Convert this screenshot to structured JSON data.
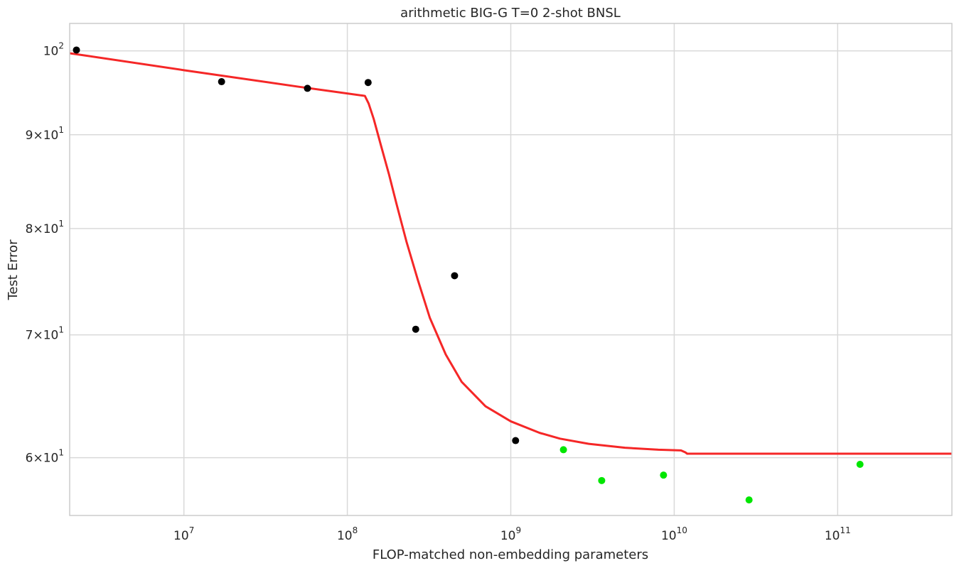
{
  "chart_data": {
    "type": "scatter",
    "title": "arithmetic BIG-G T=0 2-shot BNSL",
    "xlabel": "FLOP-matched non-embedding parameters",
    "ylabel": "Test Error",
    "xscale": "log",
    "yscale": "log",
    "xlim": [
      2000000,
      500000000000
    ],
    "ylim": [
      55.8,
      103.5
    ],
    "grid": true,
    "x_ticks": [
      {
        "value": 10000000,
        "base": "10",
        "exp": "7"
      },
      {
        "value": 100000000,
        "base": "10",
        "exp": "8"
      },
      {
        "value": 1000000000,
        "base": "10",
        "exp": "9"
      },
      {
        "value": 10000000000,
        "base": "10",
        "exp": "10"
      },
      {
        "value": 100000000000,
        "base": "10",
        "exp": "11"
      }
    ],
    "y_ticks": [
      {
        "value": 60,
        "base": "6×10",
        "exp": "1"
      },
      {
        "value": 70,
        "base": "7×10",
        "exp": "1"
      },
      {
        "value": 80,
        "base": "8×10",
        "exp": "1"
      },
      {
        "value": 90,
        "base": "9×10",
        "exp": "1"
      },
      {
        "value": 100,
        "base": "10",
        "exp": "2"
      }
    ],
    "series": [
      {
        "kind": "scatter",
        "color": "#000000",
        "points": [
          {
            "x": 2200000,
            "y": 100.1
          },
          {
            "x": 17000000,
            "y": 96.2
          },
          {
            "x": 57000000,
            "y": 95.4
          },
          {
            "x": 134000000,
            "y": 96.1
          },
          {
            "x": 262000000,
            "y": 70.5
          },
          {
            "x": 453000000,
            "y": 75.4
          },
          {
            "x": 1070000000,
            "y": 61.3
          }
        ]
      },
      {
        "kind": "scatter",
        "color": "#00e600",
        "points": [
          {
            "x": 2100000000,
            "y": 60.6
          },
          {
            "x": 3600000000,
            "y": 58.3
          },
          {
            "x": 8600000000,
            "y": 58.7
          },
          {
            "x": 28700000000,
            "y": 56.9
          },
          {
            "x": 137000000000,
            "y": 59.5
          }
        ]
      },
      {
        "kind": "line",
        "color": "#f52727",
        "points": [
          {
            "x": 2000000,
            "y": 99.7
          },
          {
            "x": 10000000,
            "y": 97.6
          },
          {
            "x": 50000000,
            "y": 95.6
          },
          {
            "x": 128000000,
            "y": 94.5
          },
          {
            "x": 135000000,
            "y": 93.6
          },
          {
            "x": 145000000,
            "y": 91.8
          },
          {
            "x": 160000000,
            "y": 88.9
          },
          {
            "x": 180000000,
            "y": 85.6
          },
          {
            "x": 200000000,
            "y": 82.5
          },
          {
            "x": 230000000,
            "y": 78.7
          },
          {
            "x": 270000000,
            "y": 75.0
          },
          {
            "x": 320000000,
            "y": 71.5
          },
          {
            "x": 400000000,
            "y": 68.3
          },
          {
            "x": 500000000,
            "y": 66.0
          },
          {
            "x": 700000000,
            "y": 64.0
          },
          {
            "x": 1000000000,
            "y": 62.8
          },
          {
            "x": 1500000000,
            "y": 61.9
          },
          {
            "x": 2000000000,
            "y": 61.45
          },
          {
            "x": 3000000000,
            "y": 61.05
          },
          {
            "x": 5000000000,
            "y": 60.75
          },
          {
            "x": 8000000000,
            "y": 60.6
          },
          {
            "x": 11000000000,
            "y": 60.55
          },
          {
            "x": 11700000000,
            "y": 60.4
          },
          {
            "x": 12000000000,
            "y": 60.3
          },
          {
            "x": 500000000000,
            "y": 60.3
          }
        ]
      }
    ]
  }
}
